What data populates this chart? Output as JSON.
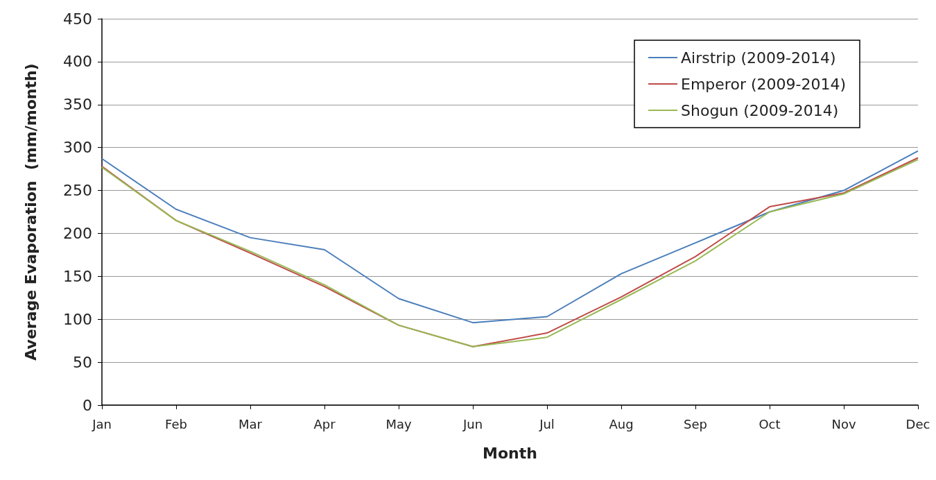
{
  "chart_data": {
    "type": "line",
    "xlabel": "Month",
    "ylabel": "Average Evaporation  (mm/month)",
    "categories": [
      "Jan",
      "Feb",
      "Mar",
      "Apr",
      "May",
      "Jun",
      "Jul",
      "Aug",
      "Sep",
      "Oct",
      "Nov",
      "Dec"
    ],
    "series": [
      {
        "name": "Airstrip (2009-2014)",
        "color": "#4a7ebb",
        "values": [
          287,
          228,
          195,
          181,
          124,
          96,
          103,
          153,
          189,
          225,
          250,
          296
        ]
      },
      {
        "name": "Emperor (2009-2014)",
        "color": "#be4b48",
        "values": [
          278,
          215,
          177,
          138,
          93,
          68,
          84,
          126,
          173,
          231,
          247,
          288
        ]
      },
      {
        "name": "Shogun (2009-2014)",
        "color": "#98b954",
        "values": [
          277,
          215,
          179,
          140,
          93,
          68,
          79,
          123,
          168,
          225,
          246,
          286
        ]
      }
    ],
    "ylim": [
      0,
      450
    ],
    "yticks": [
      0,
      50,
      100,
      150,
      200,
      250,
      300,
      350,
      400,
      450
    ],
    "grid": "y",
    "legend": "top right",
    "marker": "none",
    "line_style": "solid"
  }
}
